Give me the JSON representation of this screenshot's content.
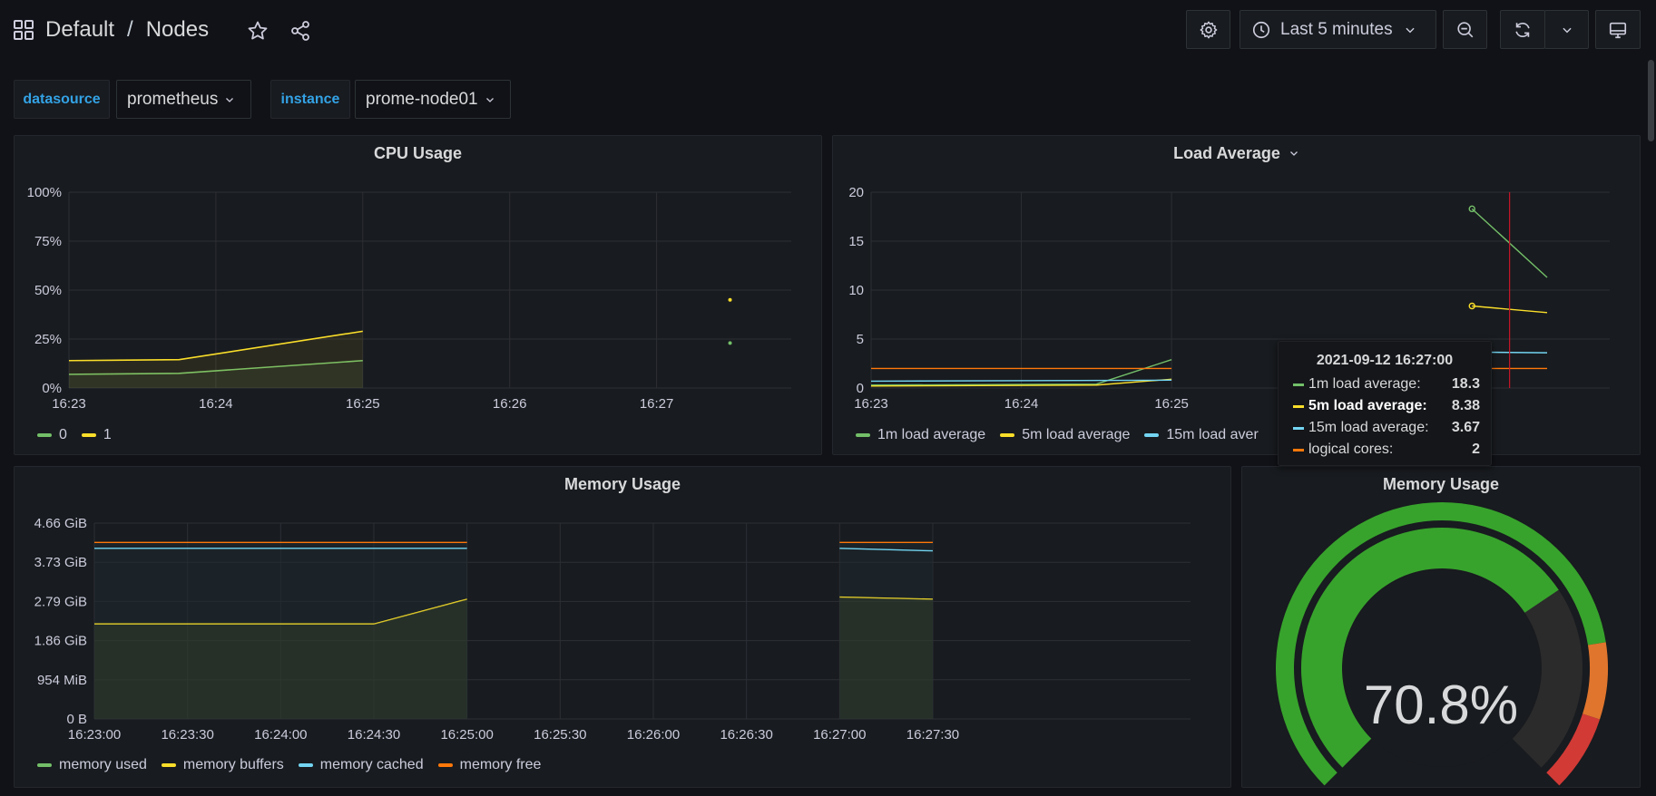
{
  "header": {
    "folder": "Default",
    "separator": "/",
    "dashboard": "Nodes",
    "time_range": "Last 5 minutes"
  },
  "variables": [
    {
      "label": "datasource",
      "value": "prometheus"
    },
    {
      "label": "instance",
      "value": "prome-node01"
    }
  ],
  "icons": [
    "apps-icon",
    "star-icon",
    "share-icon",
    "gear-icon",
    "clock-icon",
    "chevron-down-icon",
    "zoom-out-icon",
    "refresh-icon",
    "tv-icon"
  ],
  "colors": {
    "green": "#73bf69",
    "yellow": "#fade2a",
    "blue": "#8ab8ff",
    "cyan": "#5794f2",
    "orange": "#ff780a",
    "red": "#f2495c"
  },
  "panels": {
    "cpu": {
      "title": "CPU Usage",
      "legend": [
        {
          "name": "0",
          "color": "#73bf69"
        },
        {
          "name": "1",
          "color": "#fade2a"
        }
      ]
    },
    "load": {
      "title": "Load Average",
      "legend": [
        {
          "name": "1m load average",
          "color": "#73bf69"
        },
        {
          "name": "5m load average",
          "color": "#fade2a"
        },
        {
          "name": "15m load aver",
          "color": "#73d5f2"
        }
      ]
    },
    "memory": {
      "title": "Memory Usage",
      "legend": [
        {
          "name": "memory used",
          "color": "#73bf69"
        },
        {
          "name": "memory buffers",
          "color": "#fade2a"
        },
        {
          "name": "memory cached",
          "color": "#73d5f2"
        },
        {
          "name": "memory free",
          "color": "#ff780a"
        }
      ]
    },
    "gauge": {
      "title": "Memory Usage",
      "value_text": "70.8%",
      "value": 70.8,
      "thresholds": [
        {
          "from": 0,
          "color": "#37a32c"
        },
        {
          "from": 80,
          "color": "#37a32c"
        },
        {
          "from": 90,
          "color": "#e0752d"
        },
        {
          "from": 95,
          "color": "#d23a36"
        }
      ]
    }
  },
  "tooltip": {
    "time": "2021-09-12 16:27:00",
    "rows": [
      {
        "name": "1m load average:",
        "value": "18.3",
        "color": "#73bf69",
        "highlight": false
      },
      {
        "name": "5m load average:",
        "value": "8.38",
        "color": "#fade2a",
        "highlight": true
      },
      {
        "name": "15m load average:",
        "value": "3.67",
        "color": "#73d5f2",
        "highlight": false
      },
      {
        "name": "logical cores:",
        "value": "2",
        "color": "#ff780a",
        "highlight": false
      }
    ]
  },
  "chart_data": [
    {
      "type": "line",
      "title": "CPU Usage",
      "xlabel": "",
      "ylabel": "",
      "x_ticks": [
        "16:23",
        "16:24",
        "16:25",
        "16:26",
        "16:27"
      ],
      "y_ticks": [
        "0%",
        "25%",
        "50%",
        "75%",
        "100%"
      ],
      "ylim": [
        0,
        100
      ],
      "series": [
        {
          "name": "0",
          "x": [
            "16:23:00",
            "16:23:45",
            "16:25:00",
            "16:27:30"
          ],
          "values": [
            7,
            7.5,
            14,
            23
          ]
        },
        {
          "name": "1",
          "x": [
            "16:23:00",
            "16:23:45",
            "16:25:00",
            "16:27:30"
          ],
          "values": [
            14,
            14.5,
            29,
            45
          ]
        }
      ]
    },
    {
      "type": "line",
      "title": "Load Average",
      "xlabel": "",
      "ylabel": "",
      "x_ticks": [
        "16:23",
        "16:24",
        "16:25"
      ],
      "y_ticks": [
        "0",
        "5",
        "10",
        "15",
        "20"
      ],
      "ylim": [
        0,
        20
      ],
      "series": [
        {
          "name": "1m load average",
          "x": [
            "16:23:00",
            "16:24:30",
            "16:25:00",
            "16:27:00",
            "16:27:30"
          ],
          "values": [
            0.3,
            0.4,
            2.9,
            18.3,
            11.3
          ]
        },
        {
          "name": "5m load average",
          "x": [
            "16:23:00",
            "16:24:30",
            "16:25:00",
            "16:27:00",
            "16:27:30"
          ],
          "values": [
            0.2,
            0.3,
            0.9,
            8.38,
            7.7
          ]
        },
        {
          "name": "15m load average",
          "x": [
            "16:23:00",
            "16:25:00",
            "16:27:00",
            "16:27:30"
          ],
          "values": [
            0.7,
            0.8,
            3.67,
            3.6
          ]
        },
        {
          "name": "logical cores",
          "x": [
            "16:23:00",
            "16:25:00",
            "16:27:00",
            "16:27:30"
          ],
          "values": [
            2,
            2,
            2,
            2
          ]
        }
      ]
    },
    {
      "type": "area",
      "title": "Memory Usage",
      "xlabel": "",
      "ylabel": "",
      "x_ticks": [
        "16:23:00",
        "16:23:30",
        "16:24:00",
        "16:24:30",
        "16:25:00",
        "16:25:30",
        "16:26:00",
        "16:26:30",
        "16:27:00",
        "16:27:30"
      ],
      "y_ticks": [
        "0 B",
        "954 MiB",
        "1.86 GiB",
        "2.79 GiB",
        "3.73 GiB",
        "4.66 GiB"
      ],
      "ylim_gib": [
        0,
        4.66
      ],
      "series": [
        {
          "name": "memory used",
          "x": [
            "16:23:00",
            "16:24:30",
            "16:25:00",
            "16:27:00",
            "16:27:30"
          ],
          "values_gib": [
            2.26,
            2.26,
            2.85,
            2.9,
            2.85
          ]
        },
        {
          "name": "memory buffers",
          "x": [
            "16:23:00",
            "16:24:30",
            "16:25:00",
            "16:27:00",
            "16:27:30"
          ],
          "values_gib": [
            2.26,
            2.26,
            2.85,
            2.9,
            2.85
          ]
        },
        {
          "name": "memory cached",
          "x": [
            "16:23:00",
            "16:25:00",
            "16:27:00",
            "16:27:30"
          ],
          "values_gib": [
            4.06,
            4.06,
            4.06,
            4.0
          ]
        },
        {
          "name": "memory free",
          "x": [
            "16:23:00",
            "16:25:00",
            "16:27:00",
            "16:27:30"
          ],
          "values_gib": [
            4.2,
            4.2,
            4.2,
            4.2
          ]
        }
      ]
    }
  ]
}
